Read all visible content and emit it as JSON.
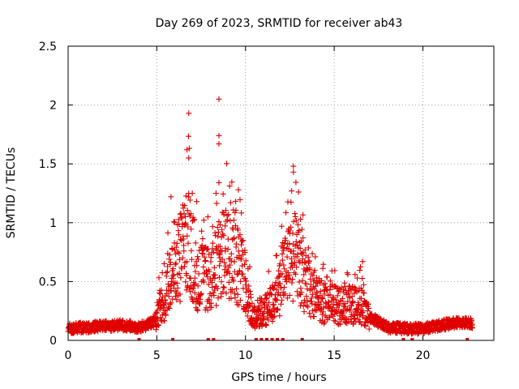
{
  "chart_data": {
    "type": "scatter",
    "title": "Day 269 of 2023, SRMTID for receiver ab43",
    "xlabel": "GPS time / hours",
    "ylabel": "SRMTID / TECUs",
    "xlim": [
      0,
      24
    ],
    "ylim": [
      0,
      2.5
    ],
    "x_ticks": [
      0,
      5,
      10,
      15,
      20
    ],
    "x_tick_labels": [
      "0",
      "5",
      "10",
      "15",
      "20"
    ],
    "y_ticks": [
      0,
      0.5,
      1,
      1.5,
      2,
      2.5
    ],
    "y_tick_labels": [
      "0",
      "0.5",
      "1",
      "1.5",
      "2",
      "2.5"
    ],
    "grid": true,
    "marker": "+",
    "color": "#e00000",
    "series": [
      {
        "name": "SRMTID",
        "profile": [
          {
            "x": 0.0,
            "y": 0.1
          },
          {
            "x": 1.0,
            "y": 0.11
          },
          {
            "x": 2.0,
            "y": 0.12
          },
          {
            "x": 3.0,
            "y": 0.13
          },
          {
            "x": 4.0,
            "y": 0.11
          },
          {
            "x": 4.8,
            "y": 0.15
          },
          {
            "x": 5.5,
            "y": 0.38
          },
          {
            "x": 6.0,
            "y": 0.6
          },
          {
            "x": 6.8,
            "y": 0.85
          },
          {
            "x": 7.3,
            "y": 0.55
          },
          {
            "x": 8.0,
            "y": 0.5
          },
          {
            "x": 8.6,
            "y": 0.7
          },
          {
            "x": 9.3,
            "y": 0.75
          },
          {
            "x": 10.0,
            "y": 0.5
          },
          {
            "x": 10.4,
            "y": 0.2
          },
          {
            "x": 11.5,
            "y": 0.3
          },
          {
            "x": 12.3,
            "y": 0.6
          },
          {
            "x": 12.8,
            "y": 0.7
          },
          {
            "x": 13.5,
            "y": 0.45
          },
          {
            "x": 14.5,
            "y": 0.3
          },
          {
            "x": 15.5,
            "y": 0.3
          },
          {
            "x": 16.5,
            "y": 0.3
          },
          {
            "x": 17.0,
            "y": 0.2
          },
          {
            "x": 18.0,
            "y": 0.11
          },
          {
            "x": 19.0,
            "y": 0.1
          },
          {
            "x": 20.0,
            "y": 0.1
          },
          {
            "x": 21.0,
            "y": 0.13
          },
          {
            "x": 22.0,
            "y": 0.15
          },
          {
            "x": 22.8,
            "y": 0.15
          }
        ],
        "highlights": [
          {
            "x": 6.8,
            "y": 1.93
          },
          {
            "x": 6.7,
            "y": 1.62
          },
          {
            "x": 6.8,
            "y": 1.55
          },
          {
            "x": 8.5,
            "y": 2.05
          },
          {
            "x": 8.5,
            "y": 1.74
          },
          {
            "x": 8.5,
            "y": 1.67
          },
          {
            "x": 8.5,
            "y": 1.34
          },
          {
            "x": 9.6,
            "y": 1.28
          },
          {
            "x": 12.7,
            "y": 1.48
          },
          {
            "x": 12.7,
            "y": 1.43
          },
          {
            "x": 12.6,
            "y": 1.27
          },
          {
            "x": 13.1,
            "y": 1.03
          },
          {
            "x": 16.6,
            "y": 0.67
          },
          {
            "x": 5.8,
            "y": 1.22
          },
          {
            "x": 7.0,
            "y": 1.25
          }
        ],
        "zeros": [
          4.0,
          5.9,
          7.9,
          8.2,
          10.6,
          10.9,
          11.2,
          11.5,
          11.8,
          12.1,
          13.2,
          18.9,
          19.4,
          22.5
        ]
      }
    ]
  }
}
